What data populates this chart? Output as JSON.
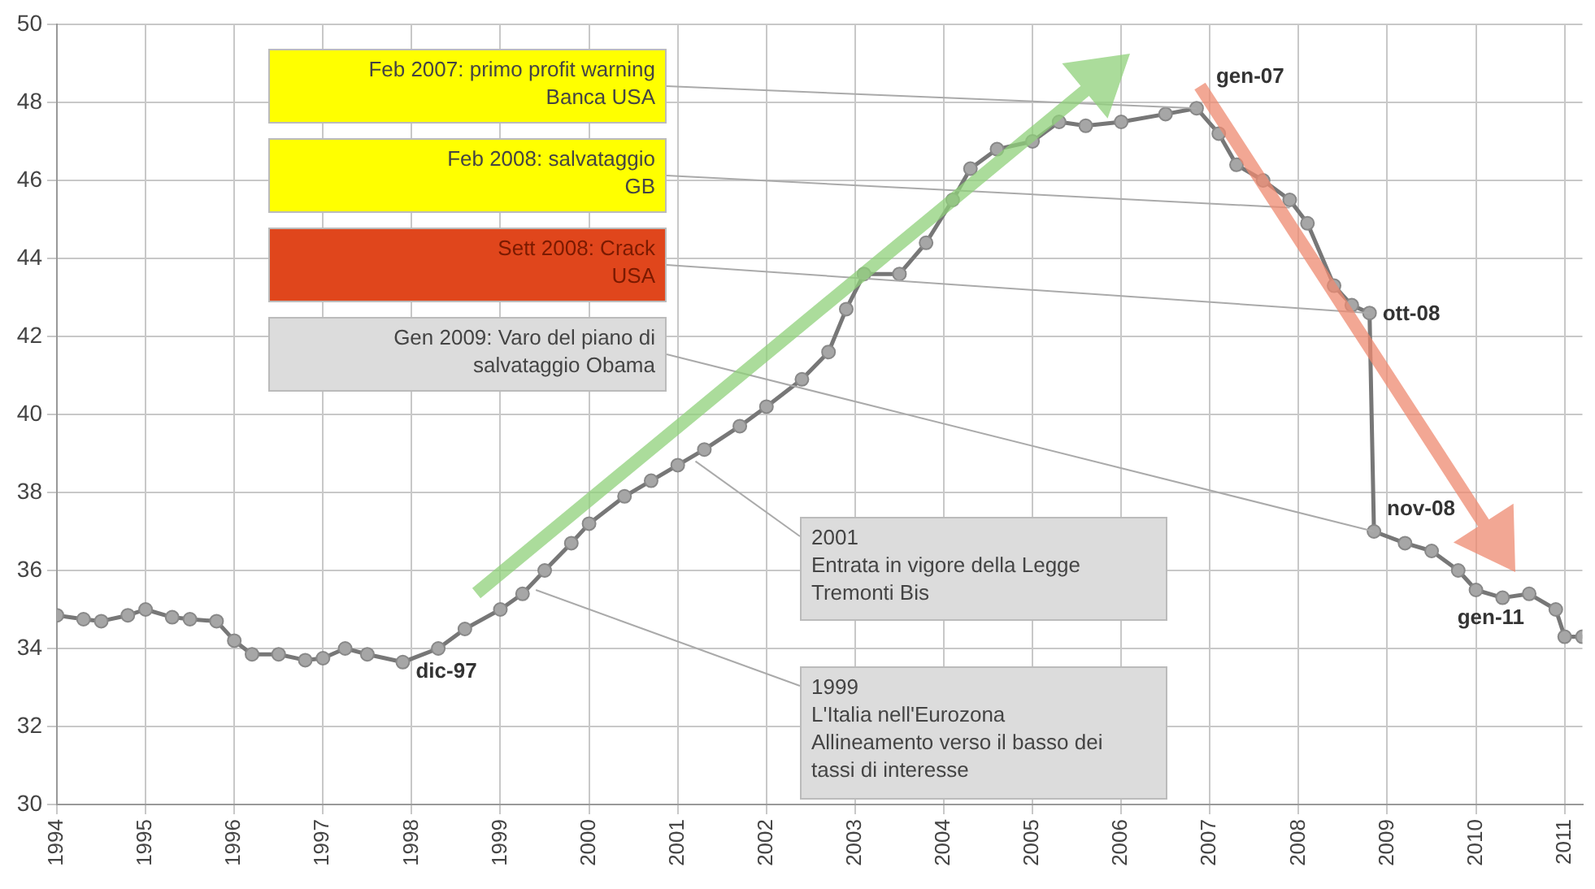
{
  "chart_data": {
    "type": "line",
    "x": [
      1994.0,
      1994.3,
      1994.5,
      1994.8,
      1995.0,
      1995.3,
      1995.5,
      1995.8,
      1996.0,
      1996.2,
      1996.5,
      1996.8,
      1997.0,
      1997.25,
      1997.5,
      1997.9,
      1998.3,
      1998.6,
      1999.0,
      1999.25,
      1999.5,
      1999.8,
      2000.0,
      2000.4,
      2000.7,
      2001.0,
      2001.3,
      2001.7,
      2002.0,
      2002.4,
      2002.7,
      2002.9,
      2003.1,
      2003.5,
      2003.8,
      2004.1,
      2004.3,
      2004.6,
      2005.0,
      2005.3,
      2005.6,
      2006.0,
      2006.5,
      2006.85,
      2007.1,
      2007.3,
      2007.6,
      2007.9,
      2008.1,
      2008.4,
      2008.6,
      2008.8,
      2008.85,
      2009.2,
      2009.5,
      2009.8,
      2010.0,
      2010.3,
      2010.6,
      2010.9,
      2011.0,
      2011.2
    ],
    "series": [
      {
        "color": "#a6a6a6",
        "values": [
          34.85,
          34.75,
          34.7,
          34.85,
          35.0,
          34.8,
          34.75,
          34.7,
          34.2,
          33.85,
          33.85,
          33.7,
          33.75,
          34.0,
          33.85,
          33.65,
          34.0,
          34.5,
          35.0,
          35.4,
          36.0,
          36.7,
          37.2,
          37.9,
          38.3,
          38.7,
          39.1,
          39.7,
          40.2,
          40.9,
          41.6,
          42.7,
          43.6,
          43.6,
          44.4,
          45.5,
          46.3,
          46.8,
          47.0,
          47.5,
          47.4,
          47.5,
          47.7,
          47.85,
          47.2,
          46.4,
          46.0,
          45.5,
          44.9,
          43.3,
          42.8,
          42.6,
          37.0,
          36.7,
          36.5,
          36.0,
          35.5,
          35.3,
          35.4,
          35.0,
          34.3,
          34.3
        ]
      }
    ],
    "xlim": [
      1994,
      2011.2
    ],
    "xticks": [
      1994,
      1995,
      1996,
      1997,
      1998,
      1999,
      2000,
      2001,
      2002,
      2003,
      2004,
      2005,
      2006,
      2007,
      2008,
      2009,
      2010,
      2011
    ],
    "ylim": [
      30,
      50
    ],
    "yticks": [
      30,
      32,
      34,
      36,
      38,
      40,
      42,
      44,
      46,
      48,
      50
    ],
    "grid": true,
    "legend": false,
    "marker": "circle",
    "annotations": [
      {
        "text": "Feb 2007: primo profit warning\nBanca USA",
        "x": 2006.85,
        "y": 47.85
      },
      {
        "text": "Feb 2008: salvataggio\nGB",
        "x": 2007.9,
        "y": 45.3
      },
      {
        "text": "Sett 2008: Crack\nUSA",
        "x": 2008.8,
        "y": 42.6
      },
      {
        "text": "Gen 2009: Varo del piano di\nsalvataggio Obama",
        "x": 2008.85,
        "y": 37.0
      },
      {
        "text": "2001\nEntrata in vigore della Legge\nTremonti Bis",
        "x": 2001.2,
        "y": 38.8
      },
      {
        "text": "1999\nL'Italia nell'Eurozona\nAllineamento verso il basso dei\ntassi di interesse",
        "x": 1999.4,
        "y": 35.5
      },
      {
        "text": "gen-07",
        "x": 2006.85,
        "y": 47.85
      },
      {
        "text": "ott-08",
        "x": 2008.8,
        "y": 42.6
      },
      {
        "text": "nov-08",
        "x": 2008.85,
        "y": 37.0
      },
      {
        "text": "dic-97",
        "x": 1997.9,
        "y": 33.65
      },
      {
        "text": "gen-11",
        "x": 2011.0,
        "y": 34.3
      }
    ]
  }
}
